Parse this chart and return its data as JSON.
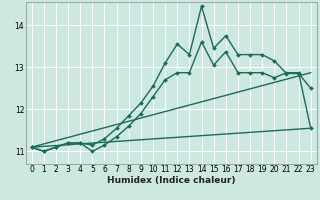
{
  "xlabel": "Humidex (Indice chaleur)",
  "background_color": "#cce8e0",
  "grid_color": "#ffffff",
  "line_color": "#1a6b5a",
  "xlim": [
    -0.5,
    23.5
  ],
  "ylim": [
    10.7,
    14.55
  ],
  "yticks": [
    11,
    12,
    13,
    14
  ],
  "xticks": [
    0,
    1,
    2,
    3,
    4,
    5,
    6,
    7,
    8,
    9,
    10,
    11,
    12,
    13,
    14,
    15,
    16,
    17,
    18,
    19,
    20,
    21,
    22,
    23
  ],
  "series": [
    {
      "x": [
        0,
        1,
        2,
        3,
        4,
        5,
        6,
        7,
        8,
        9,
        10,
        11,
        12,
        13,
        14,
        15,
        16,
        17,
        18,
        19,
        20,
        21,
        22,
        23
      ],
      "y": [
        11.1,
        11.0,
        11.1,
        11.2,
        11.2,
        11.15,
        11.3,
        11.55,
        11.85,
        12.15,
        12.55,
        13.1,
        13.55,
        13.3,
        14.45,
        13.45,
        13.75,
        13.3,
        13.3,
        13.3,
        13.15,
        12.85,
        12.85,
        12.5
      ],
      "marker": "D",
      "markersize": 2.0,
      "linewidth": 1.0
    },
    {
      "x": [
        0,
        1,
        2,
        3,
        4,
        5,
        6,
        7,
        8,
        9,
        10,
        11,
        12,
        13,
        14,
        15,
        16,
        17,
        18,
        19,
        20,
        21,
        22,
        23
      ],
      "y": [
        11.1,
        11.0,
        11.1,
        11.2,
        11.2,
        11.0,
        11.15,
        11.35,
        11.6,
        11.9,
        12.3,
        12.7,
        12.87,
        12.87,
        13.6,
        13.05,
        13.37,
        12.87,
        12.87,
        12.87,
        12.75,
        12.87,
        12.87,
        11.55
      ],
      "marker": "D",
      "markersize": 2.0,
      "linewidth": 1.0
    },
    {
      "x": [
        0,
        23
      ],
      "y": [
        11.1,
        12.87
      ],
      "marker": null,
      "linewidth": 1.0
    },
    {
      "x": [
        0,
        23
      ],
      "y": [
        11.1,
        11.55
      ],
      "marker": null,
      "linewidth": 1.0
    }
  ]
}
